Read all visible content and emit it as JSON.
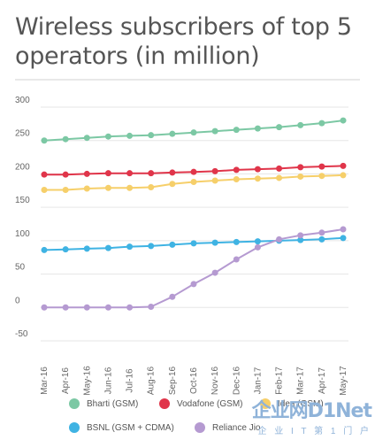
{
  "title": "Wireless subscribers of top 5 operators (in million)",
  "watermark": {
    "text": "企业网D1Net",
    "sub": "企 业 I T 第 1 门 户"
  },
  "chart_data": {
    "type": "line",
    "title": "Wireless subscribers of top 5 operators (in million)",
    "xlabel": "",
    "ylabel": "",
    "ylim": [
      -50,
      300
    ],
    "yticks": [
      300,
      250,
      200,
      150,
      100,
      50,
      0,
      -50
    ],
    "grid": true,
    "legend_position": "bottom",
    "categories": [
      "Mar-16",
      "Apr-16",
      "May-16",
      "Jun-16",
      "Jul-16",
      "Aug-16",
      "Sep-16",
      "Oct-16",
      "Nov-16",
      "Dec-16",
      "Jan-17",
      "Feb-17",
      "Mar-17",
      "Apr-17",
      "May-17"
    ],
    "series": [
      {
        "name": "Bharti (GSM)",
        "color": "#7cc8a4",
        "values": [
          250,
          252,
          254,
          256,
          257,
          258,
          260,
          262,
          264,
          266,
          268,
          270,
          273,
          276,
          280
        ]
      },
      {
        "name": "Vodafone (GSM)",
        "color": "#e0354a",
        "values": [
          199,
          199,
          200,
          201,
          201,
          201,
          202,
          203,
          204,
          206,
          207,
          208,
          210,
          211,
          212
        ]
      },
      {
        "name": "Idea (GSM)",
        "color": "#f6cf6a",
        "values": [
          176,
          176,
          178,
          179,
          179,
          180,
          185,
          188,
          190,
          192,
          193,
          194,
          196,
          197,
          198
        ]
      },
      {
        "name": "BSNL (GSM + CDMA)",
        "color": "#3fb3e3",
        "values": [
          86,
          87,
          88,
          89,
          91,
          92,
          94,
          96,
          97,
          98,
          99,
          100,
          101,
          102,
          104
        ]
      },
      {
        "name": "Reliance Jio",
        "color": "#b59ad1",
        "values": [
          0,
          0,
          0,
          0,
          0,
          1,
          16,
          35,
          52,
          72,
          90,
          102,
          108,
          112,
          117
        ]
      }
    ]
  }
}
